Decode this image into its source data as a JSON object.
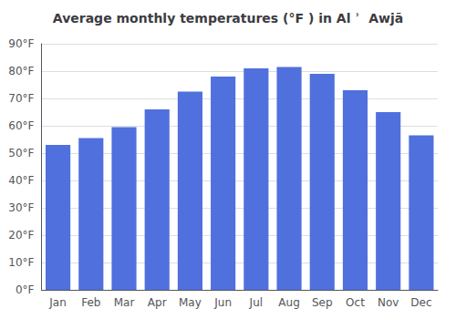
{
  "chart_data": {
    "type": "bar",
    "title": "Average monthly temperatures (°F ) in Al ʾ  Awjā",
    "categories": [
      "Jan",
      "Feb",
      "Mar",
      "Apr",
      "May",
      "Jun",
      "Jul",
      "Aug",
      "Sep",
      "Oct",
      "Nov",
      "Dec"
    ],
    "values": [
      53,
      55.5,
      59.5,
      66,
      72.5,
      78,
      81,
      81.5,
      79,
      73,
      65,
      56.5
    ],
    "ylim": [
      0,
      90
    ],
    "yticks": [
      {
        "value": 0,
        "label": "0°F"
      },
      {
        "value": 10,
        "label": "10°F"
      },
      {
        "value": 20,
        "label": "20°F"
      },
      {
        "value": 30,
        "label": "30°F"
      },
      {
        "value": 40,
        "label": "40°F"
      },
      {
        "value": 50,
        "label": "50°F"
      },
      {
        "value": 60,
        "label": "60°F"
      },
      {
        "value": 70,
        "label": "70°F"
      },
      {
        "value": 80,
        "label": "80°F"
      },
      {
        "value": 90,
        "label": "90°F"
      }
    ],
    "grid": true
  }
}
